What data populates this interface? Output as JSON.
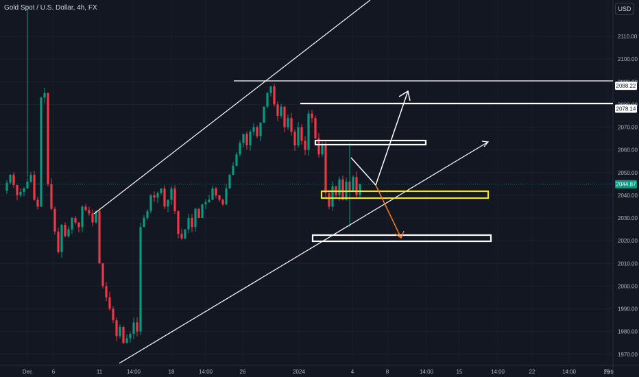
{
  "header": {
    "symbol_title": "Gold Spot / U.S. Dollar, 4h, FX",
    "currency": "USD"
  },
  "chart_data": {
    "type": "candlestick",
    "symbol": "Gold Spot / U.S. Dollar",
    "interval": "4h",
    "ylim": [
      1966,
      2126
    ],
    "y_ticks": [
      1970,
      1980,
      1990,
      2000,
      2010,
      2020,
      2030,
      2040,
      2050,
      2060,
      2070,
      2080,
      2090,
      2100,
      2110
    ],
    "y_tick_labels": [
      "1970.00",
      "1980.00",
      "1990.00",
      "2000.00",
      "2010.00",
      "2020.00",
      "2030.00",
      "2040.00",
      "2050.00",
      "2060.00",
      "2070.00",
      "2080.00",
      "2090.00",
      "2100.00",
      "2110.00"
    ],
    "x_ticks": [
      "Dec",
      "6",
      "11",
      "14:00",
      "18",
      "14:00",
      "26",
      "2024",
      "4",
      "8",
      "14:00",
      "15",
      "14:00",
      "22",
      "14:00",
      "29",
      "Feb"
    ],
    "price_tags": [
      {
        "label": "2088.22",
        "value": 2088.22,
        "style": "white"
      },
      {
        "label": "2078.14",
        "value": 2078.14,
        "style": "white"
      },
      {
        "label": "2044.87",
        "value": 2044.87,
        "style": "green"
      }
    ],
    "last_price": 2044.87,
    "colors": {
      "up": "#089981",
      "down": "#f23645",
      "background": "#131722",
      "zone_yellow": "#f2e422",
      "arrow_orange": "#f57c20"
    },
    "price_path": [
      [
        0,
        2042
      ],
      [
        2,
        2049
      ],
      [
        4,
        2040
      ],
      [
        6,
        2043
      ],
      [
        8,
        2049
      ],
      [
        9,
        2038
      ],
      [
        10,
        2035
      ],
      [
        11,
        2083
      ],
      [
        12,
        2085
      ],
      [
        13,
        2045
      ],
      [
        14,
        2034
      ],
      [
        15,
        2024
      ],
      [
        16,
        2015
      ],
      [
        17,
        2027
      ],
      [
        18,
        2022
      ],
      [
        19,
        2025
      ],
      [
        20,
        2030
      ],
      [
        22,
        2026
      ],
      [
        23,
        2035
      ],
      [
        25,
        2032
      ],
      [
        26,
        2028
      ],
      [
        27,
        2033
      ],
      [
        28,
        2010
      ],
      [
        29,
        2000
      ],
      [
        30,
        1995
      ],
      [
        32,
        1985
      ],
      [
        33,
        1978
      ],
      [
        34,
        1982
      ],
      [
        35,
        1975
      ],
      [
        37,
        1979
      ],
      [
        38,
        1984
      ],
      [
        39,
        1980
      ],
      [
        40,
        2026
      ],
      [
        41,
        2030
      ],
      [
        42,
        2033
      ],
      [
        43,
        2040
      ],
      [
        44,
        2039
      ],
      [
        45,
        2041
      ],
      [
        46,
        2043
      ],
      [
        47,
        2035
      ],
      [
        48,
        2038
      ],
      [
        49,
        2043
      ],
      [
        50,
        2033
      ],
      [
        51,
        2023
      ],
      [
        52,
        2021
      ],
      [
        53,
        2025
      ],
      [
        54,
        2030
      ],
      [
        55,
        2026
      ],
      [
        56,
        2034
      ],
      [
        57,
        2030
      ],
      [
        58,
        2036
      ],
      [
        60,
        2038
      ],
      [
        61,
        2043
      ],
      [
        62,
        2040
      ],
      [
        64,
        2036
      ],
      [
        65,
        2043
      ],
      [
        66,
        2049
      ],
      [
        67,
        2053
      ],
      [
        68,
        2058
      ],
      [
        69,
        2063
      ],
      [
        70,
        2067
      ],
      [
        71,
        2062
      ],
      [
        72,
        2068
      ],
      [
        73,
        2070
      ],
      [
        74,
        2066
      ],
      [
        75,
        2072
      ],
      [
        76,
        2079
      ],
      [
        77,
        2085
      ],
      [
        78,
        2088
      ],
      [
        79,
        2080
      ],
      [
        80,
        2075
      ],
      [
        81,
        2079
      ],
      [
        82,
        2070
      ],
      [
        83,
        2074
      ],
      [
        84,
        2068
      ],
      [
        85,
        2062
      ],
      [
        86,
        2070
      ],
      [
        87,
        2064
      ],
      [
        88,
        2060
      ],
      [
        89,
        2076
      ],
      [
        90,
        2074
      ],
      [
        91,
        2065
      ],
      [
        92,
        2058
      ],
      [
        93,
        2062
      ],
      [
        94,
        2041
      ],
      [
        95,
        2035
      ],
      [
        96,
        2044
      ],
      [
        97,
        2040
      ],
      [
        98,
        2047
      ],
      [
        99,
        2038
      ],
      [
        100,
        2046
      ],
      [
        101,
        2042
      ],
      [
        102,
        2048
      ],
      [
        103,
        2040
      ],
      [
        104,
        2045
      ]
    ]
  }
}
